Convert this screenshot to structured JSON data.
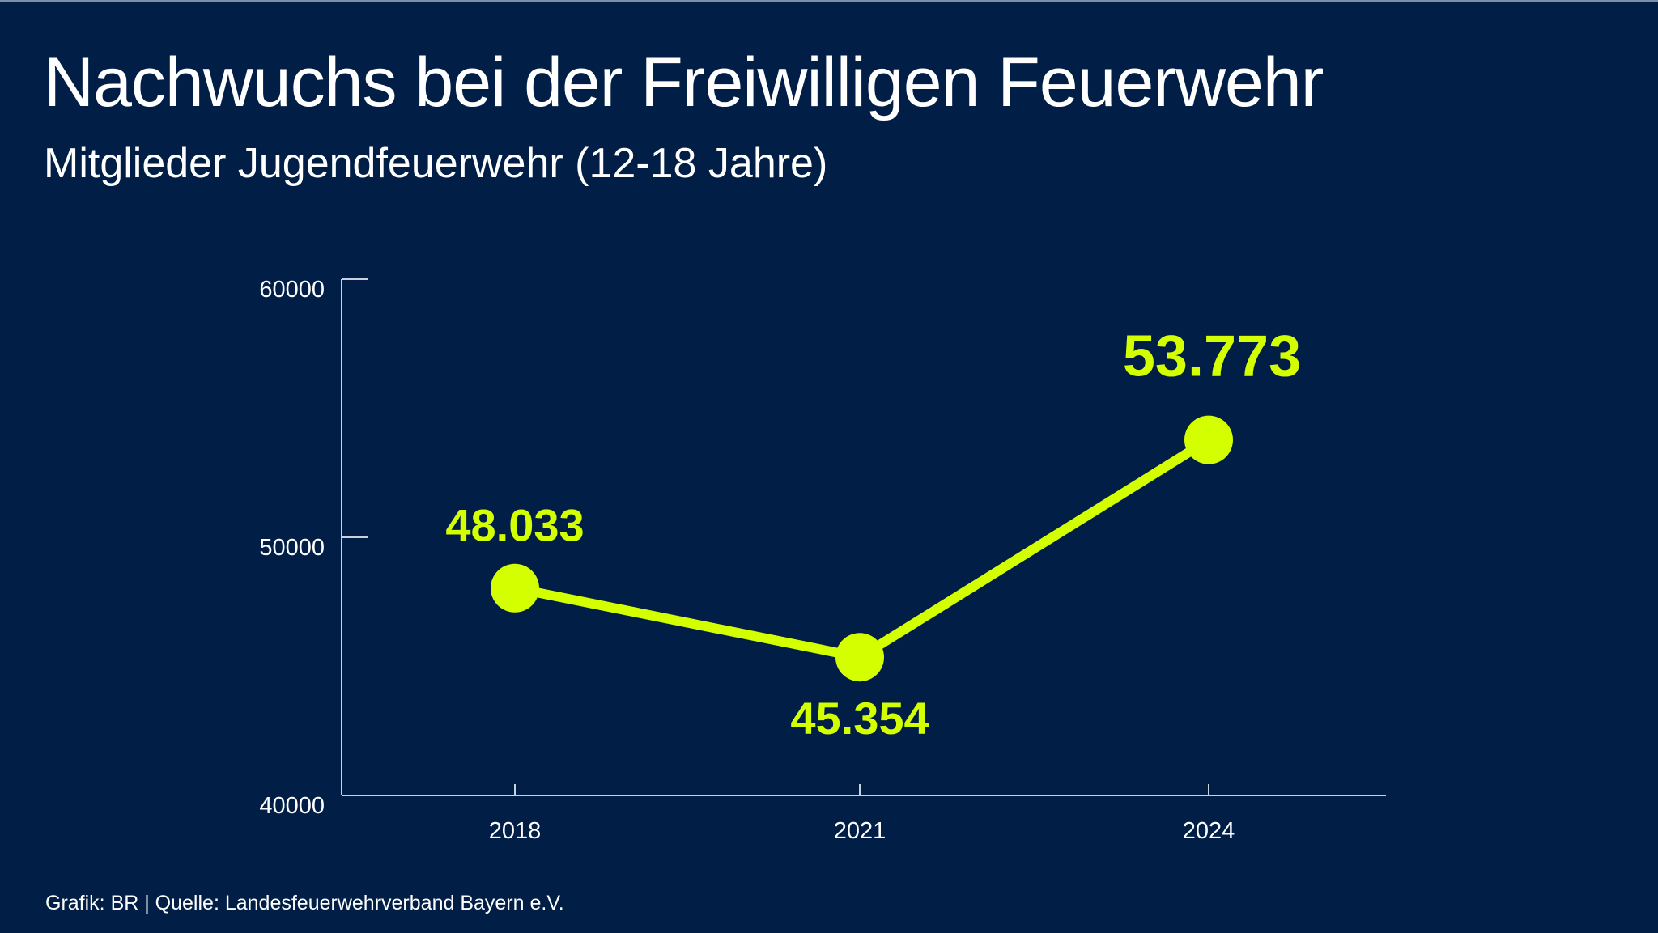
{
  "title": "Nachwuchs bei der Freiwilligen Feuerwehr",
  "subtitle": "Mitglieder Jugendfeuerwehr (12-18 Jahre)",
  "footer": "Grafik: BR | Quelle: Landesfeuerwehrverband Bayern e.V.",
  "colors": {
    "background": "#001e46",
    "accent": "#d4ff00",
    "text": "#ffffff",
    "axis": "#c9d1de"
  },
  "chart_data": {
    "type": "line",
    "title": "Nachwuchs bei der Freiwilligen Feuerwehr",
    "subtitle": "Mitglieder Jugendfeuerwehr (12-18 Jahre)",
    "categories": [
      "2018",
      "2021",
      "2024"
    ],
    "values": [
      48033,
      45354,
      53773
    ],
    "data_labels": [
      "48.033",
      "45.354",
      "53.773"
    ],
    "ylim": [
      40000,
      60000
    ],
    "yticks": [
      "40000",
      "50000",
      "60000"
    ],
    "xlabel": "",
    "ylabel": "",
    "grid": false,
    "legend": "none"
  }
}
